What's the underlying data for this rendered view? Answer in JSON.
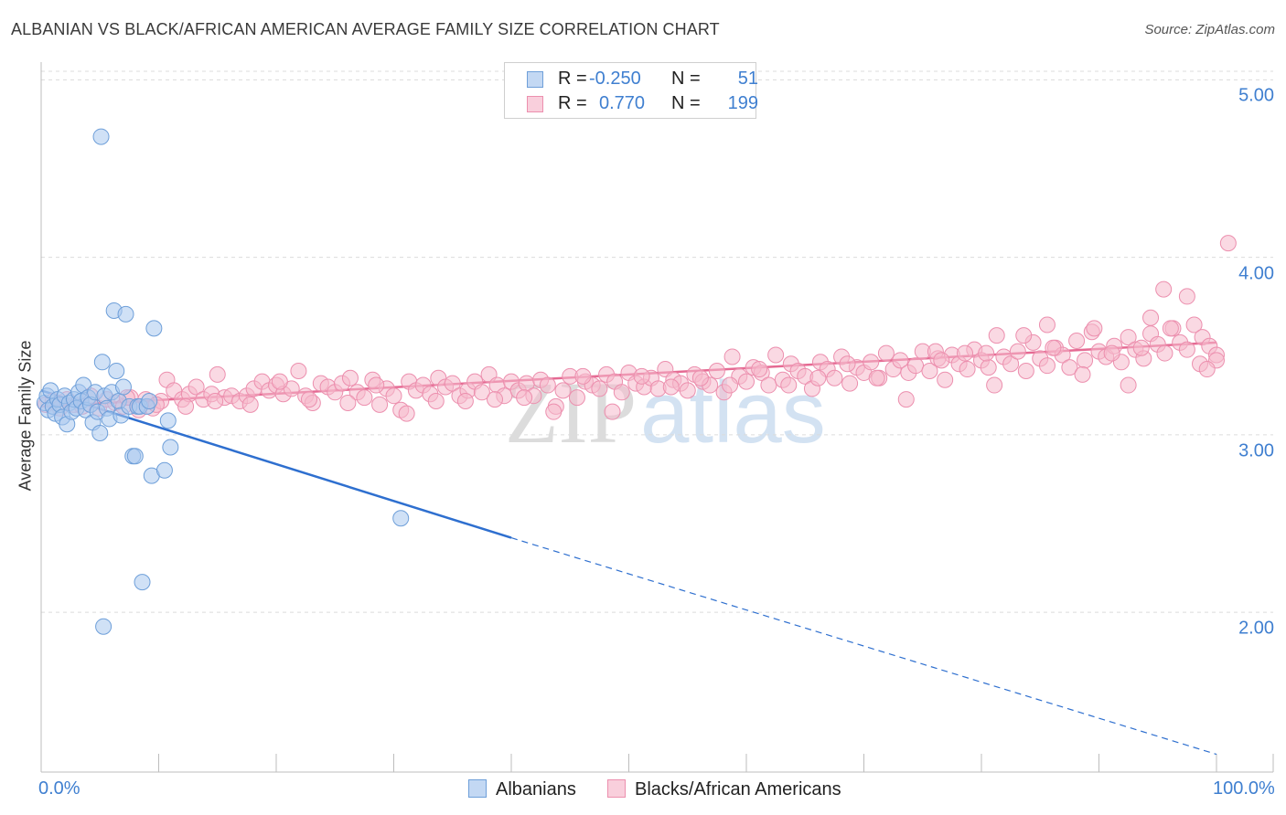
{
  "title": "ALBANIAN VS BLACK/AFRICAN AMERICAN AVERAGE FAMILY SIZE CORRELATION CHART",
  "source": "Source: ZipAtlas.com",
  "watermark": {
    "part1": "ZIP",
    "part2": "atlas"
  },
  "legend": {
    "rows": [
      {
        "r_label": "R =",
        "r_value": "-0.250",
        "n_label": "N =",
        "n_value": "51"
      },
      {
        "r_label": "R =",
        "r_value": "0.770",
        "n_label": "N =",
        "n_value": "199"
      }
    ]
  },
  "colors": {
    "albanian_fill": "#a9c8ef",
    "albanian_stroke": "#6e9fd9",
    "albanian_line": "#2e6fcf",
    "black_fill": "#f6b9cc",
    "black_stroke": "#ec8fae",
    "black_line": "#e56a93",
    "grid": "#dcdcdc",
    "tick_text": "#3f7fd0"
  },
  "chart_data": {
    "type": "scatter",
    "title": "ALBANIAN VS BLACK/AFRICAN AMERICAN AVERAGE FAMILY SIZE CORRELATION CHART",
    "xlabel": "",
    "ylabel": "Average Family Size",
    "xlim": [
      0,
      100
    ],
    "ylim": [
      1.1,
      5.1
    ],
    "x_tick_labels": [
      "0.0%",
      "100.0%"
    ],
    "y_ticks": [
      {
        "value": 5.0,
        "label": "5.00"
      },
      {
        "value": 4.0,
        "label": "4.00"
      },
      {
        "value": 3.0,
        "label": "3.00"
      },
      {
        "value": 2.0,
        "label": "2.00"
      }
    ],
    "grid": true,
    "legend_position": "top-center",
    "series": [
      {
        "name": "Albanians",
        "r": -0.25,
        "n": 51,
        "trend": {
          "x1": 0,
          "y1": 3.25,
          "x2": 40,
          "y2": 2.42,
          "dashed_to_x": 100,
          "dashed_to_y": 1.2
        },
        "points": [
          [
            0.3,
            3.18
          ],
          [
            0.5,
            3.22
          ],
          [
            0.6,
            3.14
          ],
          [
            0.8,
            3.25
          ],
          [
            1.0,
            3.16
          ],
          [
            1.2,
            3.12
          ],
          [
            1.4,
            3.2
          ],
          [
            1.6,
            3.17
          ],
          [
            1.8,
            3.1
          ],
          [
            2.0,
            3.22
          ],
          [
            2.2,
            3.06
          ],
          [
            2.4,
            3.18
          ],
          [
            2.6,
            3.13
          ],
          [
            2.8,
            3.2
          ],
          [
            3.0,
            3.15
          ],
          [
            3.2,
            3.24
          ],
          [
            3.4,
            3.19
          ],
          [
            3.6,
            3.28
          ],
          [
            3.8,
            3.14
          ],
          [
            4.0,
            3.21
          ],
          [
            4.2,
            3.17
          ],
          [
            4.4,
            3.07
          ],
          [
            4.6,
            3.24
          ],
          [
            4.8,
            3.13
          ],
          [
            5.0,
            3.01
          ],
          [
            5.2,
            3.41
          ],
          [
            5.4,
            3.22
          ],
          [
            5.6,
            3.15
          ],
          [
            5.8,
            3.09
          ],
          [
            6.0,
            3.24
          ],
          [
            6.2,
            3.7
          ],
          [
            6.4,
            3.36
          ],
          [
            6.6,
            3.19
          ],
          [
            6.8,
            3.11
          ],
          [
            7.0,
            3.27
          ],
          [
            7.2,
            3.68
          ],
          [
            7.5,
            3.16
          ],
          [
            7.8,
            2.88
          ],
          [
            8.0,
            2.88
          ],
          [
            8.2,
            3.16
          ],
          [
            8.4,
            3.16
          ],
          [
            8.6,
            2.17
          ],
          [
            9.0,
            3.16
          ],
          [
            9.2,
            3.19
          ],
          [
            9.4,
            2.77
          ],
          [
            9.6,
            3.6
          ],
          [
            10.5,
            2.8
          ],
          [
            10.8,
            3.08
          ],
          [
            11.0,
            2.93
          ],
          [
            5.1,
            4.68
          ],
          [
            5.3,
            1.92
          ],
          [
            30.6,
            2.53
          ]
        ]
      },
      {
        "name": "Blacks/African Americans",
        "r": 0.77,
        "n": 199,
        "trend": {
          "x1": 0,
          "y1": 3.16,
          "x2": 100,
          "y2": 3.52
        },
        "points": [
          [
            0.4,
            3.17
          ],
          [
            1.0,
            3.19
          ],
          [
            1.6,
            3.15
          ],
          [
            2.2,
            3.2
          ],
          [
            2.8,
            3.17
          ],
          [
            3.5,
            3.16
          ],
          [
            4.2,
            3.22
          ],
          [
            4.9,
            3.15
          ],
          [
            5.6,
            3.2
          ],
          [
            6.3,
            3.18
          ],
          [
            7.0,
            3.16
          ],
          [
            7.6,
            3.21
          ],
          [
            8.3,
            3.14
          ],
          [
            8.9,
            3.2
          ],
          [
            9.5,
            3.15
          ],
          [
            10.2,
            3.19
          ],
          [
            10.7,
            3.31
          ],
          [
            11.3,
            3.25
          ],
          [
            12.0,
            3.2
          ],
          [
            12.6,
            3.23
          ],
          [
            13.2,
            3.27
          ],
          [
            13.8,
            3.2
          ],
          [
            14.5,
            3.23
          ],
          [
            15.0,
            3.34
          ],
          [
            15.6,
            3.21
          ],
          [
            16.2,
            3.22
          ],
          [
            16.9,
            3.19
          ],
          [
            17.5,
            3.22
          ],
          [
            18.1,
            3.26
          ],
          [
            18.8,
            3.3
          ],
          [
            19.4,
            3.25
          ],
          [
            20.0,
            3.28
          ],
          [
            20.6,
            3.23
          ],
          [
            21.3,
            3.26
          ],
          [
            21.9,
            3.36
          ],
          [
            22.5,
            3.22
          ],
          [
            23.1,
            3.18
          ],
          [
            23.8,
            3.29
          ],
          [
            24.4,
            3.27
          ],
          [
            25.0,
            3.24
          ],
          [
            25.6,
            3.29
          ],
          [
            26.3,
            3.32
          ],
          [
            26.9,
            3.24
          ],
          [
            27.5,
            3.21
          ],
          [
            28.2,
            3.31
          ],
          [
            28.8,
            3.17
          ],
          [
            29.4,
            3.26
          ],
          [
            30.0,
            3.22
          ],
          [
            30.6,
            3.14
          ],
          [
            31.3,
            3.3
          ],
          [
            31.9,
            3.25
          ],
          [
            32.5,
            3.28
          ],
          [
            33.1,
            3.23
          ],
          [
            33.8,
            3.32
          ],
          [
            34.4,
            3.27
          ],
          [
            35.0,
            3.29
          ],
          [
            35.6,
            3.22
          ],
          [
            36.3,
            3.25
          ],
          [
            36.9,
            3.3
          ],
          [
            37.5,
            3.24
          ],
          [
            38.1,
            3.34
          ],
          [
            38.8,
            3.28
          ],
          [
            39.4,
            3.22
          ],
          [
            40.0,
            3.3
          ],
          [
            40.6,
            3.25
          ],
          [
            41.3,
            3.29
          ],
          [
            41.9,
            3.22
          ],
          [
            42.5,
            3.31
          ],
          [
            43.1,
            3.28
          ],
          [
            43.8,
            3.16
          ],
          [
            44.4,
            3.25
          ],
          [
            45.0,
            3.33
          ],
          [
            45.6,
            3.21
          ],
          [
            46.3,
            3.3
          ],
          [
            46.9,
            3.28
          ],
          [
            47.5,
            3.26
          ],
          [
            48.1,
            3.34
          ],
          [
            48.8,
            3.3
          ],
          [
            49.4,
            3.24
          ],
          [
            50.0,
            3.35
          ],
          [
            50.6,
            3.29
          ],
          [
            51.3,
            3.27
          ],
          [
            51.9,
            3.32
          ],
          [
            52.5,
            3.26
          ],
          [
            53.1,
            3.37
          ],
          [
            53.8,
            3.31
          ],
          [
            54.4,
            3.29
          ],
          [
            55.0,
            3.25
          ],
          [
            55.6,
            3.34
          ],
          [
            56.3,
            3.3
          ],
          [
            56.9,
            3.28
          ],
          [
            57.5,
            3.36
          ],
          [
            58.1,
            3.24
          ],
          [
            58.8,
            3.44
          ],
          [
            59.4,
            3.33
          ],
          [
            60.0,
            3.3
          ],
          [
            60.6,
            3.38
          ],
          [
            61.3,
            3.35
          ],
          [
            61.9,
            3.28
          ],
          [
            62.5,
            3.45
          ],
          [
            63.1,
            3.31
          ],
          [
            63.8,
            3.4
          ],
          [
            64.4,
            3.36
          ],
          [
            65.0,
            3.33
          ],
          [
            65.6,
            3.26
          ],
          [
            66.3,
            3.41
          ],
          [
            66.9,
            3.37
          ],
          [
            67.5,
            3.32
          ],
          [
            68.1,
            3.44
          ],
          [
            68.8,
            3.29
          ],
          [
            69.4,
            3.38
          ],
          [
            70.0,
            3.35
          ],
          [
            70.6,
            3.41
          ],
          [
            71.3,
            3.32
          ],
          [
            71.9,
            3.46
          ],
          [
            72.5,
            3.37
          ],
          [
            73.1,
            3.42
          ],
          [
            73.8,
            3.35
          ],
          [
            74.4,
            3.39
          ],
          [
            75.0,
            3.47
          ],
          [
            75.6,
            3.36
          ],
          [
            76.3,
            3.43
          ],
          [
            76.9,
            3.31
          ],
          [
            77.5,
            3.45
          ],
          [
            78.1,
            3.4
          ],
          [
            78.8,
            3.37
          ],
          [
            79.4,
            3.48
          ],
          [
            80.0,
            3.42
          ],
          [
            80.6,
            3.38
          ],
          [
            81.3,
            3.56
          ],
          [
            81.9,
            3.44
          ],
          [
            82.5,
            3.4
          ],
          [
            83.1,
            3.47
          ],
          [
            83.8,
            3.36
          ],
          [
            84.4,
            3.52
          ],
          [
            85.0,
            3.43
          ],
          [
            85.6,
            3.39
          ],
          [
            86.3,
            3.49
          ],
          [
            86.9,
            3.45
          ],
          [
            87.5,
            3.38
          ],
          [
            88.1,
            3.53
          ],
          [
            88.8,
            3.42
          ],
          [
            89.4,
            3.58
          ],
          [
            90.0,
            3.47
          ],
          [
            90.6,
            3.44
          ],
          [
            91.3,
            3.5
          ],
          [
            91.9,
            3.41
          ],
          [
            92.5,
            3.55
          ],
          [
            93.1,
            3.48
          ],
          [
            93.8,
            3.43
          ],
          [
            94.4,
            3.57
          ],
          [
            95.0,
            3.51
          ],
          [
            95.6,
            3.46
          ],
          [
            96.3,
            3.6
          ],
          [
            96.9,
            3.52
          ],
          [
            97.5,
            3.48
          ],
          [
            98.1,
            3.62
          ],
          [
            98.8,
            3.55
          ],
          [
            99.4,
            3.5
          ],
          [
            100.0,
            3.45
          ],
          [
            7.3,
            3.21
          ],
          [
            9.8,
            3.17
          ],
          [
            12.3,
            3.16
          ],
          [
            14.8,
            3.19
          ],
          [
            17.8,
            3.17
          ],
          [
            20.3,
            3.3
          ],
          [
            22.8,
            3.2
          ],
          [
            26.1,
            3.18
          ],
          [
            28.5,
            3.28
          ],
          [
            31.1,
            3.12
          ],
          [
            33.6,
            3.19
          ],
          [
            36.1,
            3.19
          ],
          [
            38.6,
            3.2
          ],
          [
            41.1,
            3.21
          ],
          [
            43.6,
            3.13
          ],
          [
            46.1,
            3.33
          ],
          [
            48.6,
            3.13
          ],
          [
            51.1,
            3.33
          ],
          [
            53.6,
            3.27
          ],
          [
            56.1,
            3.32
          ],
          [
            58.6,
            3.28
          ],
          [
            61.1,
            3.37
          ],
          [
            63.6,
            3.28
          ],
          [
            66.1,
            3.32
          ],
          [
            68.6,
            3.4
          ],
          [
            71.1,
            3.32
          ],
          [
            73.6,
            3.2
          ],
          [
            76.1,
            3.47
          ],
          [
            78.6,
            3.46
          ],
          [
            81.1,
            3.28
          ],
          [
            83.6,
            3.56
          ],
          [
            86.1,
            3.49
          ],
          [
            88.6,
            3.34
          ],
          [
            91.1,
            3.46
          ],
          [
            93.6,
            3.49
          ],
          [
            96.1,
            3.6
          ],
          [
            98.6,
            3.4
          ],
          [
            97.5,
            3.78
          ],
          [
            95.5,
            3.82
          ],
          [
            92.5,
            3.28
          ],
          [
            100.0,
            3.42
          ],
          [
            85.6,
            3.62
          ],
          [
            89.6,
            3.6
          ],
          [
            94.4,
            3.66
          ],
          [
            80.4,
            3.46
          ],
          [
            76.6,
            3.42
          ],
          [
            101.0,
            4.08
          ],
          [
            99.2,
            3.37
          ]
        ]
      }
    ]
  },
  "x_axis": {
    "left_label": "0.0%",
    "right_label": "100.0%"
  },
  "bottom_legend": {
    "series1": "Albanians",
    "series2": "Blacks/African Americans"
  }
}
